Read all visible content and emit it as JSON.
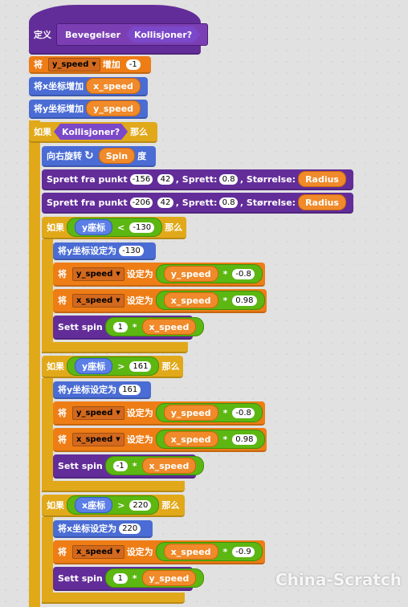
{
  "define": {
    "label": "定义",
    "name": "Bevegelser",
    "param": "Kollisjoner?"
  },
  "b1": {
    "pre": "将",
    "var": "y_speed",
    "verb": "增加",
    "val": "-1"
  },
  "b2": {
    "label": "将x坐标增加",
    "rep": "x_speed"
  },
  "b3": {
    "label": "将y坐标增加",
    "rep": "y_speed"
  },
  "if_main": {
    "if": "如果",
    "cond": "Kollisjoner?",
    "then": "那么"
  },
  "turn": {
    "label": "向右旋转",
    "rep": "Spin",
    "unit": "度"
  },
  "sprett1": {
    "a": "Sprett fra punkt",
    "x": "-156",
    "y": "42",
    "b": ", Sprett:",
    "s": "0.8",
    "c": ", Størrelse:",
    "r": "Radius"
  },
  "sprett2": {
    "a": "Sprett fra punkt",
    "x": "-206",
    "y": "42",
    "b": ", Sprett:",
    "s": "0.8",
    "c": ", Størrelse:",
    "r": "Radius"
  },
  "if1": {
    "if": "如果",
    "rep": "y座标",
    "op": "<",
    "val": "-130",
    "then": "那么",
    "setpos": {
      "label": "将y坐标设定为",
      "val": "-130"
    },
    "s1": {
      "pre": "将",
      "var": "y_speed",
      "verb": "设定为",
      "rep": "y_speed",
      "op": "*",
      "val": "-0.8"
    },
    "s2": {
      "pre": "将",
      "var": "x_speed",
      "verb": "设定为",
      "rep": "x_speed",
      "op": "*",
      "val": "0.98"
    },
    "spin": {
      "label": "Sett spin",
      "a": "1",
      "op": "*",
      "rep": "x_speed"
    }
  },
  "if2": {
    "if": "如果",
    "rep": "y座标",
    "op": ">",
    "val": "161",
    "then": "那么",
    "setpos": {
      "label": "将y坐标设定为",
      "val": "161"
    },
    "s1": {
      "pre": "将",
      "var": "y_speed",
      "verb": "设定为",
      "rep": "y_speed",
      "op": "*",
      "val": "-0.8"
    },
    "s2": {
      "pre": "将",
      "var": "x_speed",
      "verb": "设定为",
      "rep": "x_speed",
      "op": "*",
      "val": "0.98"
    },
    "spin": {
      "label": "Sett spin",
      "a": "-1",
      "op": "*",
      "rep": "x_speed"
    }
  },
  "if3": {
    "if": "如果",
    "rep": "x座标",
    "op": ">",
    "val": "220",
    "then": "那么",
    "setpos": {
      "label": "将x坐标设定为",
      "val": "220"
    },
    "s1": {
      "pre": "将",
      "var": "x_speed",
      "verb": "设定为",
      "rep": "x_speed",
      "op": "*",
      "val": "-0.9"
    },
    "spin": {
      "label": "Sett spin",
      "a": "1",
      "op": "*",
      "rep": "y_speed"
    }
  },
  "watermark": "China-Scratch",
  "colors": {
    "variables": "#ee7d16",
    "motion": "#4a6cd4",
    "control": "#e1a91a",
    "operators": "#5cb712",
    "more_blocks": "#632d99",
    "looks": "#8a55d7"
  }
}
